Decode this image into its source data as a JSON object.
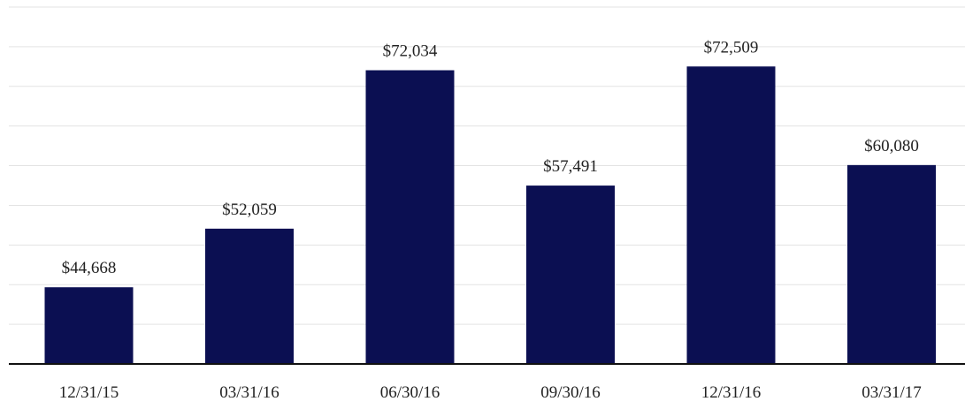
{
  "chart_data": {
    "type": "bar",
    "title": "",
    "xlabel": "",
    "ylabel": "",
    "categories": [
      "12/31/15",
      "03/31/16",
      "06/30/16",
      "09/30/16",
      "12/31/16",
      "03/31/17"
    ],
    "values": [
      44668,
      52059,
      72034,
      57491,
      72509,
      60080
    ],
    "value_labels": [
      "$44,668",
      "$52,059",
      "$72,034",
      "$57,491",
      "$72,509",
      "$60,080"
    ],
    "ylim": [
      35000,
      80000
    ],
    "gridlines": [
      40000,
      45000,
      50000,
      55000,
      60000,
      65000,
      70000,
      75000,
      80000
    ],
    "grid": true,
    "legend": "none",
    "colors": {
      "bar": "#0b0f52",
      "grid": "#e3e3e3",
      "axis": "#111111",
      "text": "#222222"
    }
  }
}
